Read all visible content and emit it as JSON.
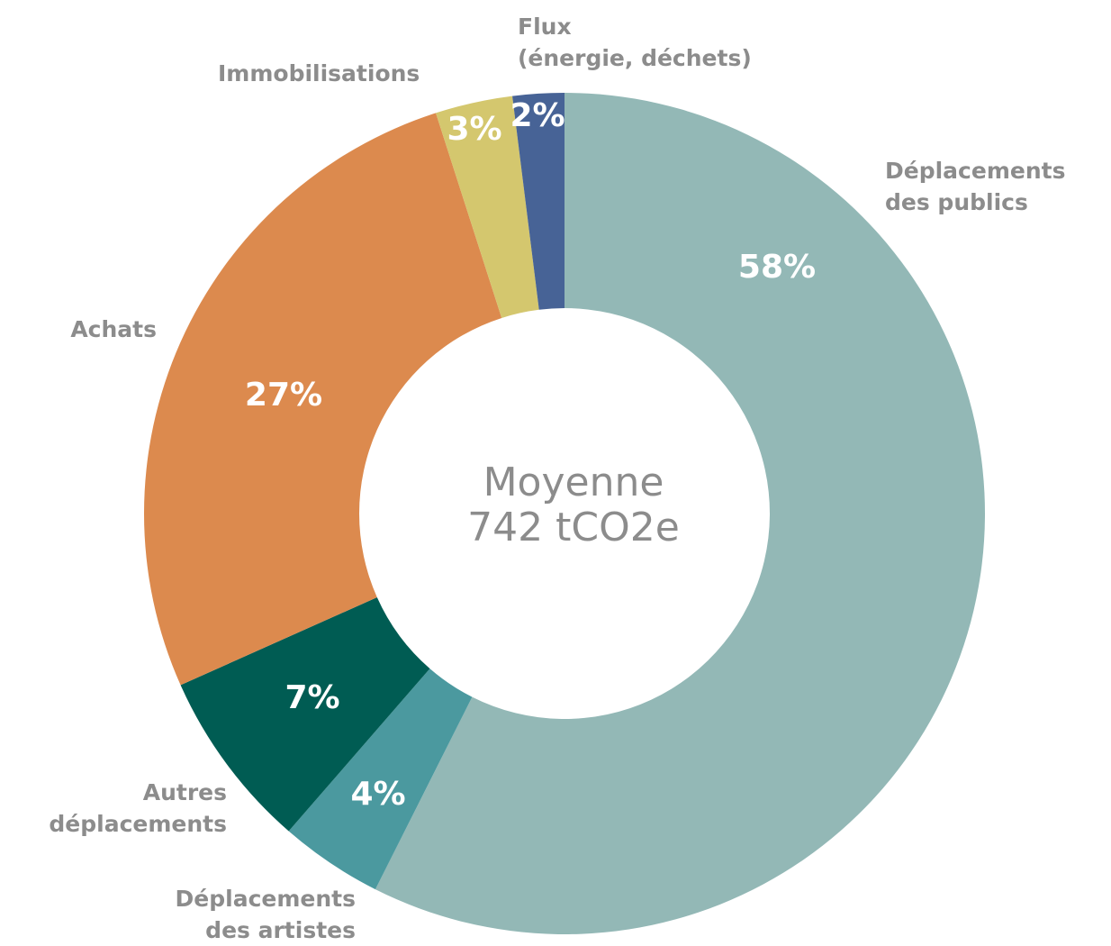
{
  "chart_data": {
    "type": "donut",
    "categories": [
      "Déplacements\ndes publics",
      "Déplacements\ndes artistes",
      "Autres\ndéplacements",
      "Achats",
      "Immobilisations",
      "Flux\n(énergie, déchets)"
    ],
    "values": [
      58,
      4,
      7,
      27,
      3,
      2
    ],
    "value_labels": [
      "58%",
      "4%",
      "7%",
      "27%",
      "3%",
      "2%"
    ],
    "colors": [
      "#93b8b6",
      "#4b999f",
      "#005c53",
      "#dc8a4e",
      "#d4c76e",
      "#476396"
    ],
    "center_label": [
      "Moyenne",
      "742 tCO2e"
    ]
  }
}
